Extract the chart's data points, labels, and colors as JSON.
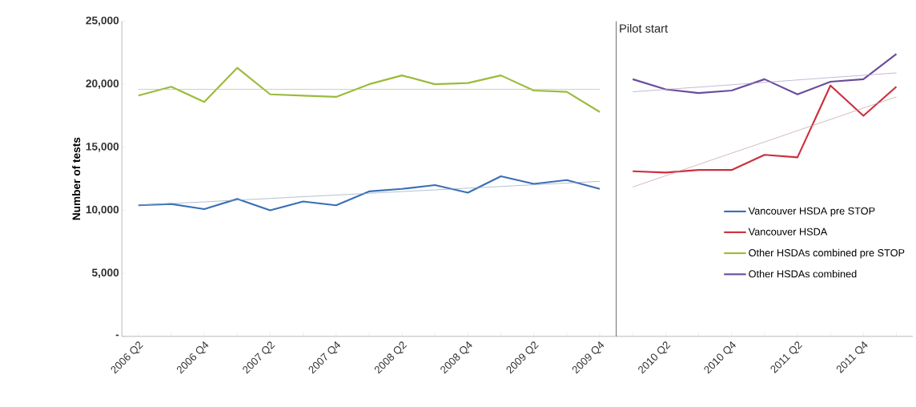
{
  "chart_data": {
    "type": "line",
    "ylabel": "Number of tests",
    "categories": [
      "2006 Q2",
      null,
      "2006 Q4",
      null,
      "2007 Q2",
      null,
      "2007 Q4",
      null,
      "2008 Q2",
      null,
      "2008 Q4",
      null,
      "2009 Q2",
      null,
      "2009 Q4",
      null,
      "2010 Q2",
      null,
      "2010 Q4",
      null,
      "2011 Q2",
      null,
      "2011 Q4",
      null
    ],
    "ylim": [
      0,
      25000
    ],
    "yticks": [
      {
        "value": 0,
        "label": "-"
      },
      {
        "value": 5000,
        "label": "5,000"
      },
      {
        "value": 10000,
        "label": "10,000"
      },
      {
        "value": 15000,
        "label": "15,000"
      },
      {
        "value": 20000,
        "label": "20,000"
      },
      {
        "value": 25000,
        "label": "25,000"
      }
    ],
    "series": [
      {
        "name": "Vancouver HSDA pre STOP",
        "color": "#3a6fb5",
        "values": [
          10400,
          10500,
          10100,
          10900,
          10000,
          10700,
          10400,
          11500,
          11700,
          12000,
          11400,
          12700,
          12100,
          12400,
          11700,
          null,
          null,
          null,
          null,
          null,
          null,
          null,
          null,
          null
        ]
      },
      {
        "name": "Vancouver HSDA",
        "color": "#cc2f3c",
        "values": [
          null,
          null,
          null,
          null,
          null,
          null,
          null,
          null,
          null,
          null,
          null,
          null,
          null,
          null,
          null,
          13100,
          13000,
          13200,
          13200,
          14400,
          14200,
          19900,
          17500,
          19800
        ]
      },
      {
        "name": "Other HSDAs combined pre STOP",
        "color": "#9bbb3b",
        "values": [
          19100,
          19800,
          18600,
          21300,
          19200,
          19100,
          19000,
          20000,
          20700,
          20000,
          20100,
          20700,
          19500,
          19400,
          17800,
          null,
          null,
          null,
          null,
          null,
          null,
          null,
          null,
          null
        ]
      },
      {
        "name": "Other HSDAs combined",
        "color": "#6a4c9c",
        "values": [
          null,
          null,
          null,
          null,
          null,
          null,
          null,
          null,
          null,
          null,
          null,
          null,
          null,
          null,
          null,
          20400,
          19600,
          19300,
          19500,
          20400,
          19200,
          20200,
          20400,
          22400
        ]
      },
      {
        "type": "line",
        "color": "#8ea4c0",
        "values": [
          10400,
          10540,
          10670,
          10810,
          10940,
          11080,
          11210,
          11350,
          11490,
          11620,
          11760,
          11890,
          12030,
          12160,
          12300,
          null,
          null,
          null,
          null,
          null,
          null,
          null,
          null,
          null
        ]
      },
      {
        "type": "line",
        "color": "#c49a9a",
        "values": [
          null,
          null,
          null,
          null,
          null,
          null,
          null,
          null,
          null,
          null,
          null,
          null,
          null,
          null,
          null,
          11850,
          12740,
          13640,
          14530,
          15420,
          16320,
          17210,
          18110,
          19000
        ]
      },
      {
        "type": "line",
        "color": "#b8b8b0",
        "values": [
          19600,
          19600,
          19600,
          19600,
          19600,
          19600,
          19600,
          19600,
          19600,
          19600,
          19600,
          19600,
          19600,
          19600,
          19600,
          null,
          null,
          null,
          null,
          null,
          null,
          null,
          null,
          null
        ]
      },
      {
        "type": "line",
        "color": "#a898c4",
        "values": [
          null,
          null,
          null,
          null,
          null,
          null,
          null,
          null,
          null,
          null,
          null,
          null,
          null,
          null,
          null,
          19400,
          19590,
          19770,
          19960,
          20150,
          20340,
          20530,
          20710,
          20900
        ]
      }
    ],
    "annotations": [
      "Pilot start"
    ],
    "legend": "right"
  }
}
